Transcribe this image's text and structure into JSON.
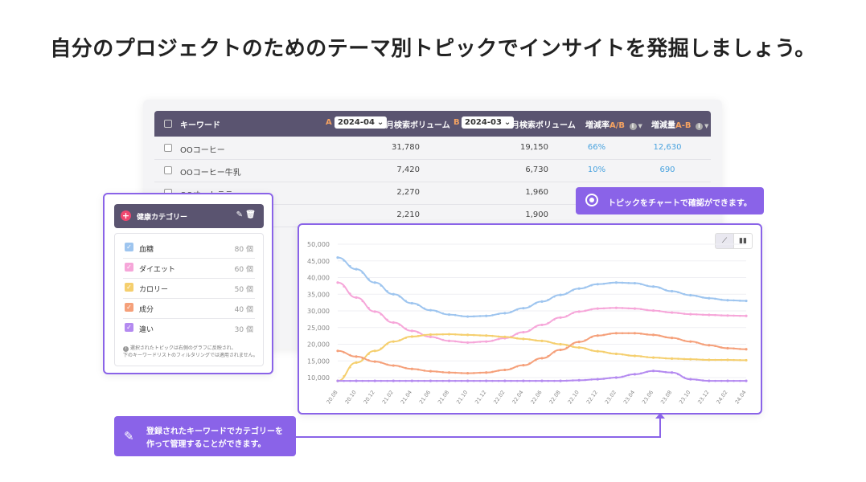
{
  "headline": "自分のプロジェクトのためのテーマ別トピックでインサイトを発掘しましょう。",
  "table": {
    "header": {
      "keyword": "キーワード",
      "a_label": "A",
      "a_month": "2024-04",
      "a_volume": "月検索ボリューム",
      "b_label": "B",
      "b_month": "2024-03",
      "b_volume": "月検索ボリューム",
      "rate": "増減率",
      "rate_ab": "A/B",
      "amount": "増減量",
      "amount_ab": "A-B"
    },
    "rows": [
      {
        "keyword": "OOコーヒー",
        "a": "31,780",
        "b": "19,150",
        "rate": "66%",
        "amount": "12,630"
      },
      {
        "keyword": "OOコーヒー牛乳",
        "a": "7,420",
        "b": "6,730",
        "rate": "10%",
        "amount": "690"
      },
      {
        "keyword": "OOオートラテー",
        "a": "2,270",
        "b": "1,960",
        "rate": "",
        "amount": ""
      },
      {
        "keyword": "",
        "a": "2,210",
        "b": "1,900",
        "rate": "",
        "amount": ""
      }
    ]
  },
  "category": {
    "title": "健康カテゴリー",
    "items": [
      {
        "name": "血糖",
        "count": "80 個",
        "color": "#9ec5ef"
      },
      {
        "name": "ダイエット",
        "count": "60 個",
        "color": "#f6a6d9"
      },
      {
        "name": "カロリー",
        "count": "50 個",
        "color": "#f5cf6e"
      },
      {
        "name": "成分",
        "count": "40 個",
        "color": "#f5a07a"
      },
      {
        "name": "違い",
        "count": "30 個",
        "color": "#b48af0"
      }
    ],
    "note_line1": "選択されたトピックは右側のグラフに反映され、",
    "note_line2": "下のキーワードリストのフィルタリングでは適用されません。"
  },
  "callouts": {
    "chart": "トピックをチャートで確認ができます。",
    "category_line1": "登録されたキーワードでカテゴリーを",
    "category_line2": "作って管理することができます。"
  },
  "colors": {
    "accent": "#8a63e8",
    "header_bg": "#5a5470"
  },
  "chart_data": {
    "type": "line",
    "ylim": [
      10000,
      50000
    ],
    "y_ticks": [
      "10,000",
      "15,000",
      "20,000",
      "25,000",
      "30,000",
      "35,000",
      "40,000",
      "45,000",
      "50,000"
    ],
    "x": [
      "20.08",
      "20.10",
      "20.12",
      "21.02",
      "21.04",
      "21.06",
      "21.08",
      "21.10",
      "21.12",
      "22.02",
      "22.04",
      "22.06",
      "22.08",
      "22.10",
      "22.12",
      "23.02",
      "23.04",
      "23.06",
      "23.08",
      "23.10",
      "23.12",
      "24.02",
      "24.04"
    ],
    "series": [
      {
        "name": "血糖",
        "color": "#9ec5ef",
        "values": [
          46000,
          42500,
          38500,
          35000,
          32300,
          30200,
          28900,
          28300,
          28500,
          29300,
          30800,
          32800,
          34800,
          36700,
          38000,
          38500,
          38300,
          37300,
          35900,
          34700,
          33800,
          33200,
          33000
        ]
      },
      {
        "name": "ダイエット",
        "color": "#f6a6d9",
        "values": [
          38500,
          34000,
          29800,
          26500,
          24000,
          22200,
          21000,
          20500,
          20800,
          21800,
          23600,
          25800,
          28000,
          29800,
          30700,
          30900,
          30700,
          30100,
          29500,
          29000,
          28800,
          28600,
          28500
        ]
      },
      {
        "name": "カロリー",
        "color": "#f5cf6e",
        "values": [
          9000,
          14500,
          18000,
          20800,
          22300,
          22900,
          23000,
          22800,
          22600,
          22200,
          21600,
          21000,
          20000,
          19000,
          17900,
          17100,
          16500,
          16000,
          15700,
          15500,
          15300,
          15300,
          15200
        ]
      },
      {
        "name": "成分",
        "color": "#f5a07a",
        "values": [
          18000,
          16300,
          14800,
          13600,
          12600,
          11900,
          11500,
          11300,
          11500,
          12300,
          13700,
          15800,
          18300,
          20700,
          22600,
          23300,
          23300,
          22800,
          21900,
          20800,
          19700,
          18800,
          18500
        ]
      },
      {
        "name": "違い",
        "color": "#b48af0",
        "values": [
          9000,
          9000,
          9000,
          9000,
          9000,
          9000,
          9000,
          9000,
          9000,
          9000,
          9000,
          9000,
          9000,
          9200,
          9500,
          10000,
          11000,
          12000,
          11500,
          9500,
          9000,
          9000,
          9000
        ]
      }
    ]
  }
}
